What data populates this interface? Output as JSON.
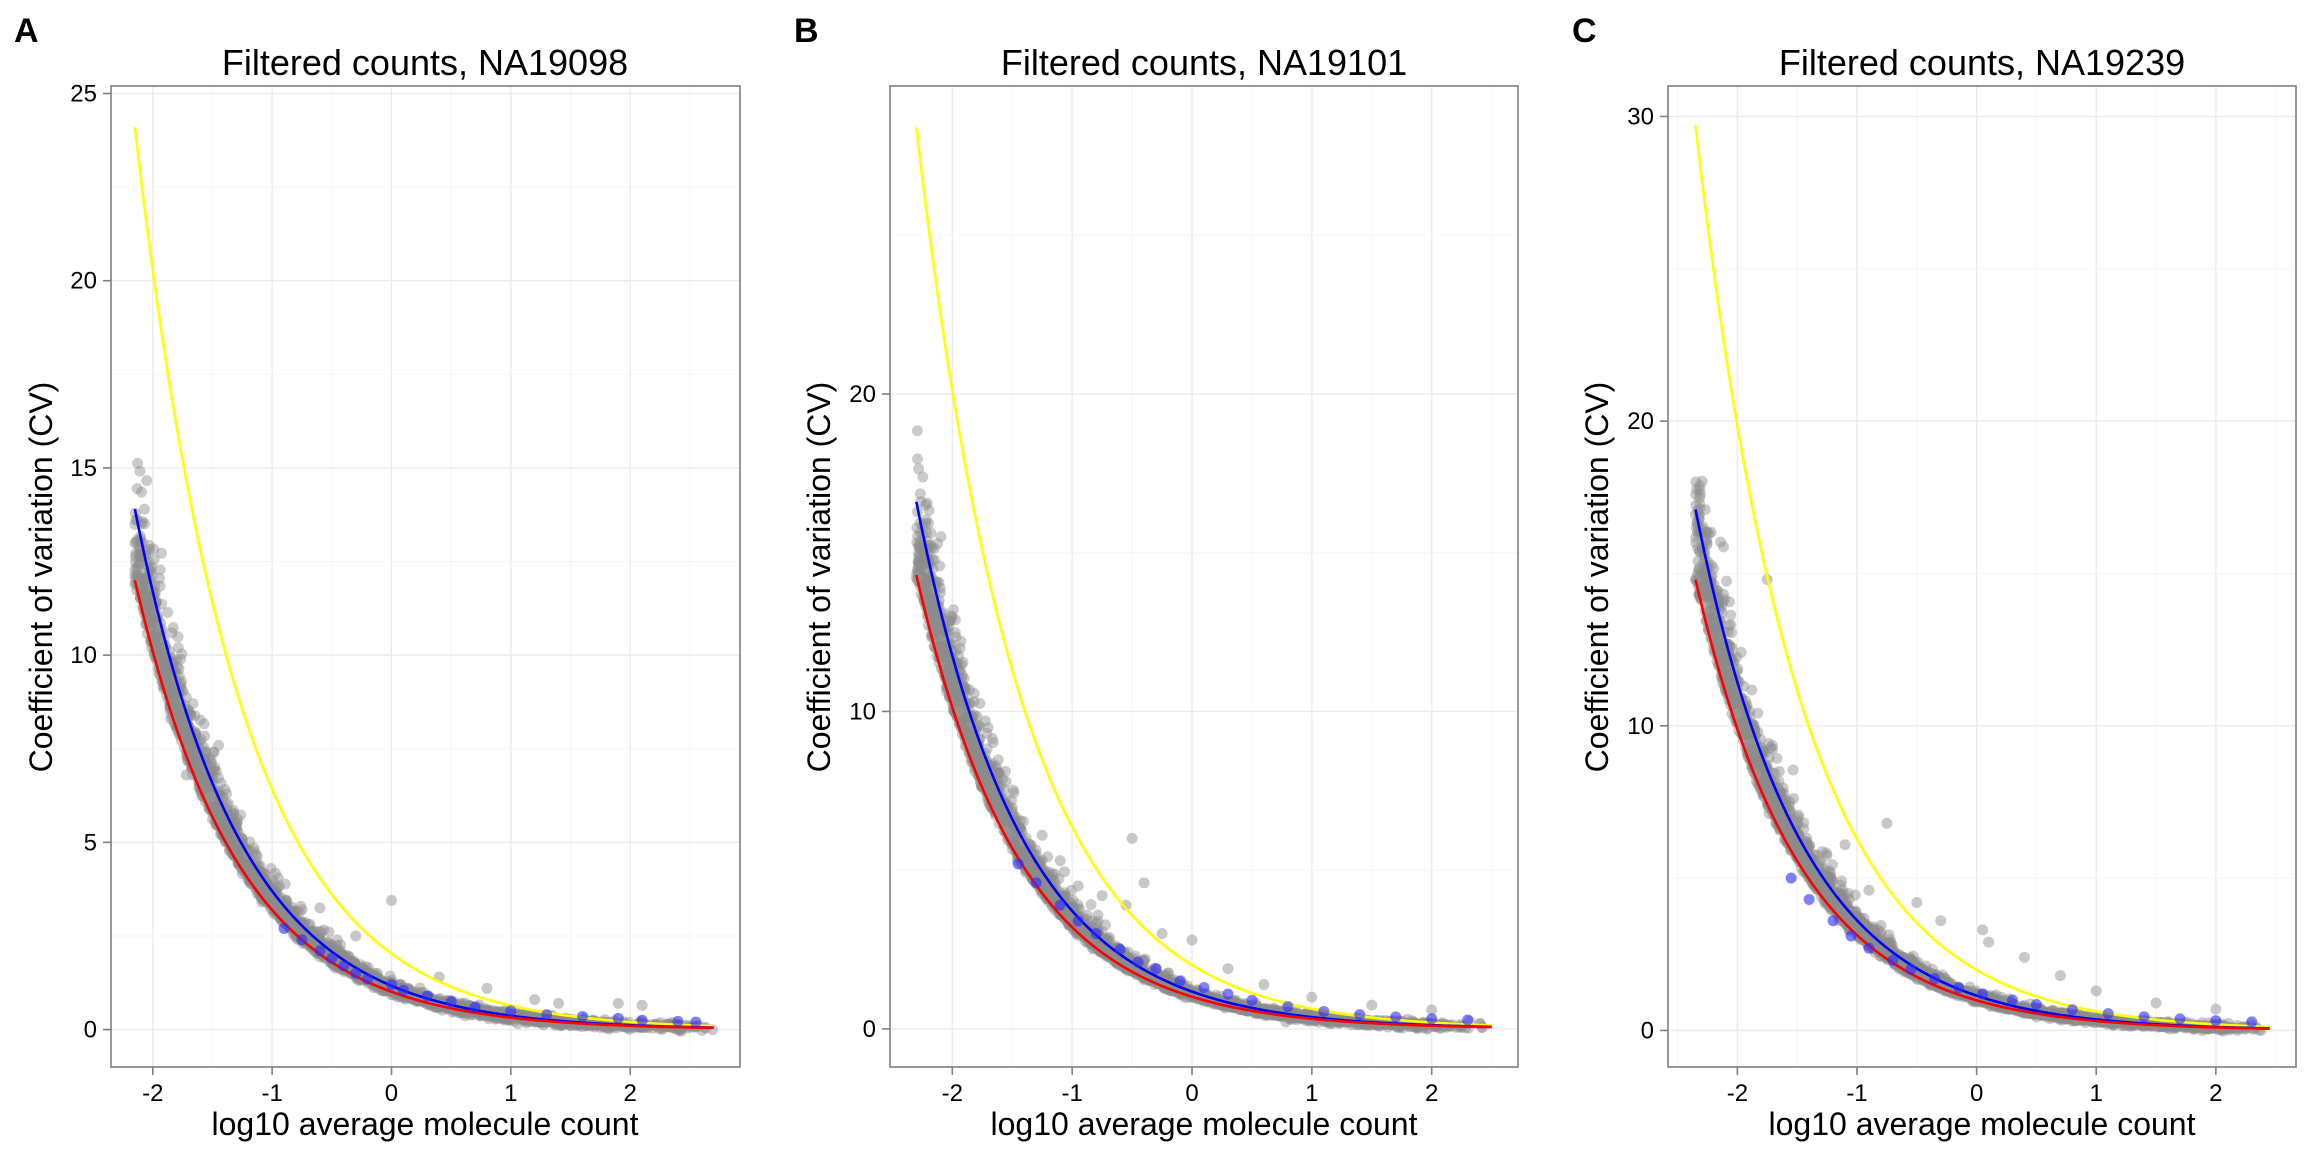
{
  "chart_data": [
    {
      "panel": "A",
      "type": "scatter",
      "title": "Filtered counts, NA19098",
      "xlabel": "log10 average molecule count",
      "ylabel": "Coefficient of variation (CV)",
      "xlim": [
        -2.35,
        2.92
      ],
      "ylim": [
        -1.0,
        25.2
      ],
      "xticks": [
        -2,
        -1,
        0,
        1,
        2
      ],
      "yticks": [
        0,
        5,
        10,
        15,
        20,
        25
      ],
      "x_domain": [
        -2.15,
        2.7
      ],
      "grid": true,
      "curves": [
        {
          "color": "#ffff00",
          "a": 24.1,
          "x0": -2.15
        },
        {
          "color": "#0000ff",
          "a": 13.9,
          "x0": -2.15
        },
        {
          "color": "#ff0000",
          "a": 12.0,
          "x0": -2.15
        }
      ],
      "highlight_points": [
        [
          -2.15,
          11.9
        ],
        [
          -1.85,
          8.3
        ],
        [
          -1.72,
          6.8
        ],
        [
          -1.52,
          6.2
        ],
        [
          -1.38,
          6.0
        ],
        [
          -1.2,
          4.7
        ],
        [
          -0.95,
          4.05
        ],
        [
          -0.75,
          3.2
        ],
        [
          -0.6,
          3.25
        ],
        [
          0.0,
          3.45
        ],
        [
          -0.3,
          2.5
        ],
        [
          0.4,
          1.4
        ],
        [
          0.8,
          1.1
        ],
        [
          1.2,
          0.8
        ],
        [
          1.4,
          0.7
        ],
        [
          1.9,
          0.7
        ],
        [
          2.1,
          0.65
        ]
      ],
      "blue_points": [
        [
          -0.9,
          2.7
        ],
        [
          -0.75,
          2.4
        ],
        [
          -0.6,
          2.1
        ],
        [
          -0.5,
          1.9
        ],
        [
          -0.4,
          1.7
        ],
        [
          -0.3,
          1.5
        ],
        [
          -0.2,
          1.35
        ],
        [
          0.0,
          1.2
        ],
        [
          0.1,
          1.05
        ],
        [
          0.3,
          0.9
        ],
        [
          0.5,
          0.75
        ],
        [
          0.7,
          0.6
        ],
        [
          1.0,
          0.5
        ],
        [
          1.3,
          0.4
        ],
        [
          1.6,
          0.35
        ],
        [
          1.9,
          0.3
        ],
        [
          2.1,
          0.25
        ],
        [
          2.4,
          0.22
        ],
        [
          2.55,
          0.2
        ]
      ]
    },
    {
      "panel": "B",
      "type": "scatter",
      "title": "Filtered counts, NA19101",
      "xlabel": "log10 average molecule count",
      "ylabel": "Coefficient of variation (CV)",
      "xlim": [
        -2.52,
        2.72
      ],
      "ylim": [
        -1.2,
        29.7
      ],
      "xticks": [
        -2,
        -1,
        0,
        1,
        2
      ],
      "yticks": [
        0,
        10,
        20
      ],
      "x_domain": [
        -2.3,
        2.5
      ],
      "grid": true,
      "curves": [
        {
          "color": "#ffff00",
          "a": 28.4,
          "x0": -2.3
        },
        {
          "color": "#0000ff",
          "a": 16.6,
          "x0": -2.3
        },
        {
          "color": "#ff0000",
          "a": 14.3,
          "x0": -2.3
        }
      ],
      "highlight_points": [
        [
          -2.3,
          14.2
        ],
        [
          -1.95,
          10.0
        ],
        [
          -1.55,
          6.2
        ],
        [
          -1.4,
          5.9
        ],
        [
          -1.25,
          6.1
        ],
        [
          -1.1,
          5.3
        ],
        [
          -0.95,
          4.5
        ],
        [
          -0.75,
          4.2
        ],
        [
          -0.55,
          3.9
        ],
        [
          -0.4,
          4.6
        ],
        [
          -0.5,
          6.0
        ],
        [
          -0.25,
          3.0
        ],
        [
          0.0,
          2.8
        ],
        [
          0.3,
          1.9
        ],
        [
          0.6,
          1.4
        ],
        [
          1.0,
          1.0
        ],
        [
          1.5,
          0.75
        ],
        [
          2.0,
          0.6
        ]
      ],
      "blue_points": [
        [
          -1.45,
          5.2
        ],
        [
          -1.3,
          4.6
        ],
        [
          -1.1,
          3.9
        ],
        [
          -0.95,
          3.4
        ],
        [
          -0.8,
          3.0
        ],
        [
          -0.6,
          2.5
        ],
        [
          -0.45,
          2.1
        ],
        [
          -0.3,
          1.9
        ],
        [
          -0.1,
          1.5
        ],
        [
          0.1,
          1.3
        ],
        [
          0.3,
          1.1
        ],
        [
          0.5,
          0.9
        ],
        [
          0.8,
          0.7
        ],
        [
          1.1,
          0.55
        ],
        [
          1.4,
          0.45
        ],
        [
          1.7,
          0.38
        ],
        [
          2.0,
          0.32
        ],
        [
          2.3,
          0.28
        ]
      ]
    },
    {
      "panel": "C",
      "type": "scatter",
      "title": "Filtered counts, NA19239",
      "xlabel": "log10 average molecule count",
      "ylabel": "Coefficient of variation (CV)",
      "xlim": [
        -2.58,
        2.67
      ],
      "ylim": [
        -1.2,
        31.0
      ],
      "xticks": [
        -2,
        -1,
        0,
        1,
        2
      ],
      "yticks": [
        0,
        10,
        20,
        30
      ],
      "x_domain": [
        -2.35,
        2.45
      ],
      "grid": true,
      "curves": [
        {
          "color": "#ffff00",
          "a": 29.7,
          "x0": -2.35
        },
        {
          "color": "#0000ff",
          "a": 17.1,
          "x0": -2.35
        },
        {
          "color": "#ff0000",
          "a": 14.8,
          "x0": -2.35
        }
      ],
      "highlight_points": [
        [
          -2.35,
          14.8
        ],
        [
          -1.75,
          14.8
        ],
        [
          -1.65,
          8.5
        ],
        [
          -2.0,
          10.4
        ],
        [
          -1.85,
          8.4
        ],
        [
          -1.5,
          6.9
        ],
        [
          -1.1,
          6.1
        ],
        [
          -0.75,
          6.8
        ],
        [
          -1.3,
          5.5
        ],
        [
          -0.9,
          4.6
        ],
        [
          -0.5,
          4.2
        ],
        [
          -0.3,
          3.6
        ],
        [
          0.05,
          3.3
        ],
        [
          0.1,
          2.9
        ],
        [
          0.4,
          2.4
        ],
        [
          0.7,
          1.8
        ],
        [
          1.0,
          1.3
        ],
        [
          1.5,
          0.9
        ],
        [
          2.0,
          0.7
        ]
      ],
      "blue_points": [
        [
          -1.55,
          5.0
        ],
        [
          -1.4,
          4.3
        ],
        [
          -1.2,
          3.6
        ],
        [
          -1.05,
          3.1
        ],
        [
          -0.9,
          2.7
        ],
        [
          -0.7,
          2.3
        ],
        [
          -0.55,
          2.0
        ],
        [
          -0.35,
          1.7
        ],
        [
          -0.15,
          1.4
        ],
        [
          0.05,
          1.2
        ],
        [
          0.3,
          1.0
        ],
        [
          0.5,
          0.85
        ],
        [
          0.8,
          0.68
        ],
        [
          1.1,
          0.55
        ],
        [
          1.4,
          0.45
        ],
        [
          1.7,
          0.38
        ],
        [
          2.0,
          0.32
        ],
        [
          2.3,
          0.28
        ]
      ]
    }
  ]
}
